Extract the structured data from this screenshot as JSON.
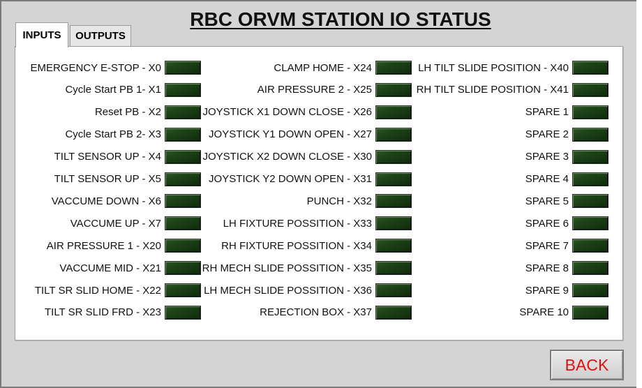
{
  "title": "RBC ORVM STATION IO STATUS",
  "tabs": [
    {
      "label": "INPUTS",
      "active": true
    },
    {
      "label": "OUTPUTS",
      "active": false
    }
  ],
  "led_color": "#1f4419",
  "columns": [
    {
      "items": [
        {
          "label": "EMERGENCY E-STOP - X0",
          "on": false
        },
        {
          "label": "Cycle Start PB 1- X1",
          "on": false
        },
        {
          "label": "Reset PB - X2",
          "on": false
        },
        {
          "label": "Cycle Start PB 2- X3",
          "on": false
        },
        {
          "label": "TILT SENSOR UP - X4",
          "on": false
        },
        {
          "label": "TILT SENSOR UP - X5",
          "on": false
        },
        {
          "label": "VACCUME DOWN - X6",
          "on": false
        },
        {
          "label": "VACCUME UP - X7",
          "on": false
        },
        {
          "label": "AIR PRESSURE 1 - X20",
          "on": false
        },
        {
          "label": "VACCUME MID - X21",
          "on": false
        },
        {
          "label": "TILT SR SLID HOME - X22",
          "on": false
        },
        {
          "label": "TILT SR SLID FRD - X23",
          "on": false
        }
      ]
    },
    {
      "items": [
        {
          "label": "CLAMP HOME - X24",
          "on": false
        },
        {
          "label": "AIR PRESSURE 2 - X25",
          "on": false
        },
        {
          "label": "JOYSTICK X1 DOWN CLOSE - X26",
          "on": false
        },
        {
          "label": "JOYSTICK Y1 DOWN OPEN - X27",
          "on": false
        },
        {
          "label": "JOYSTICK X2 DOWN CLOSE - X30",
          "on": false
        },
        {
          "label": "JOYSTICK Y2 DOWN OPEN - X31",
          "on": false
        },
        {
          "label": "PUNCH - X32",
          "on": false
        },
        {
          "label": "LH FIXTURE POSSITION - X33",
          "on": false
        },
        {
          "label": "RH FIXTURE POSSITION - X34",
          "on": false
        },
        {
          "label": "RH MECH SLIDE POSSITION - X35",
          "on": false
        },
        {
          "label": "LH MECH SLIDE POSSITION - X36",
          "on": false
        },
        {
          "label": "REJECTION BOX - X37",
          "on": false
        }
      ]
    },
    {
      "items": [
        {
          "label": "LH TILT SLIDE POSITION - X40",
          "on": false
        },
        {
          "label": "RH TILT SLIDE POSITION - X41",
          "on": false
        },
        {
          "label": "SPARE 1",
          "on": false
        },
        {
          "label": "SPARE 2",
          "on": false
        },
        {
          "label": "SPARE 3",
          "on": false
        },
        {
          "label": "SPARE 4",
          "on": false
        },
        {
          "label": "SPARE 5",
          "on": false
        },
        {
          "label": "SPARE 6",
          "on": false
        },
        {
          "label": "SPARE 7",
          "on": false
        },
        {
          "label": "SPARE 8",
          "on": false
        },
        {
          "label": "SPARE 9",
          "on": false
        },
        {
          "label": "SPARE 10",
          "on": false
        }
      ]
    }
  ],
  "back_button": {
    "label": "BACK",
    "color": "#e01010"
  }
}
